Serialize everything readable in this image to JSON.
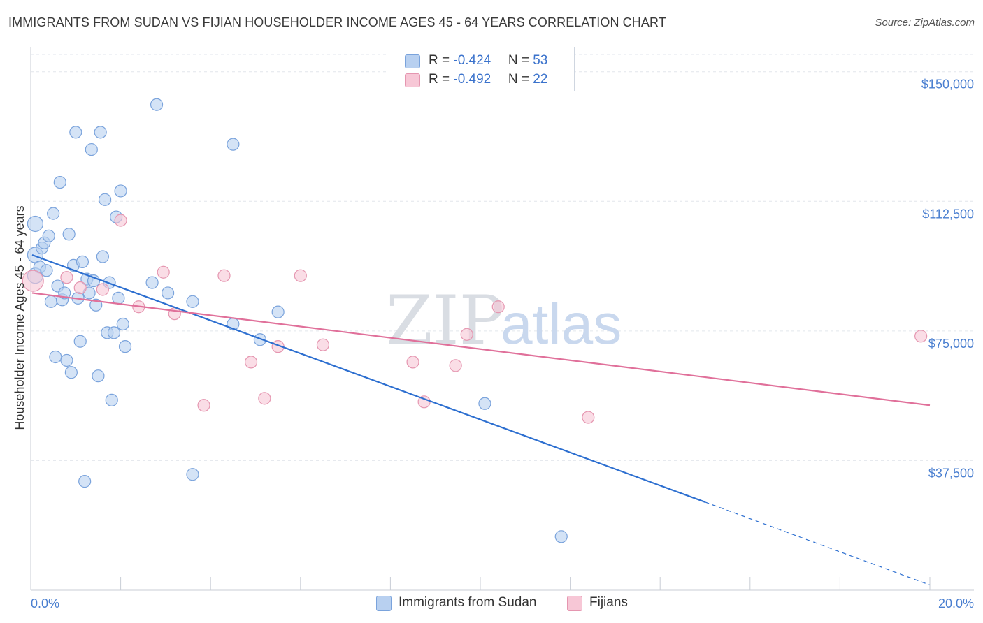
{
  "title": "IMMIGRANTS FROM SUDAN VS FIJIAN HOUSEHOLDER INCOME AGES 45 - 64 YEARS CORRELATION CHART",
  "source": "Source: ZipAtlas.com",
  "watermark": {
    "zip": "ZIP",
    "atlas": "atlas"
  },
  "legend": {
    "rows": [
      {
        "r_label": "R = ",
        "r_value": "-0.424",
        "n_label": "N = ",
        "n_value": "53"
      },
      {
        "r_label": "R = ",
        "r_value": "-0.492",
        "n_label": "N = ",
        "n_value": "22"
      }
    ]
  },
  "bottom_legend": {
    "series1": "Immigrants from Sudan",
    "series2": "Fijians"
  },
  "colors": {
    "sudan_fill": "#b8d0f0",
    "sudan_stroke": "#7aa3dc",
    "sudan_line": "#2d6fd0",
    "fijian_fill": "#f7c7d6",
    "fijian_stroke": "#e596b0",
    "fijian_line": "#e0709a",
    "grid": "#e2e6ec",
    "axis_text": "#4a7fd0"
  },
  "chart_data": {
    "type": "scatter",
    "title": "IMMIGRANTS FROM SUDAN VS FIJIAN HOUSEHOLDER INCOME AGES 45 - 64 YEARS CORRELATION CHART",
    "xlabel": "",
    "ylabel": "Householder Income Ages 45 - 64 years",
    "xlim": [
      0,
      20
    ],
    "ylim": [
      0,
      155000
    ],
    "x_tick_labels": [
      "0.0%",
      "20.0%"
    ],
    "y_ticks": [
      37500,
      75000,
      112500,
      150000
    ],
    "y_tick_labels": [
      "$37,500",
      "$75,000",
      "$112,500",
      "$150,000"
    ],
    "series": [
      {
        "name": "Immigrants from Sudan",
        "r": -0.424,
        "n": 53,
        "points": [
          [
            0.1,
            106000
          ],
          [
            0.1,
            97000
          ],
          [
            0.1,
            91000
          ],
          [
            0.2,
            93500
          ],
          [
            0.25,
            99000
          ],
          [
            0.3,
            100500
          ],
          [
            0.35,
            92500
          ],
          [
            0.4,
            102500
          ],
          [
            0.45,
            83500
          ],
          [
            0.5,
            109000
          ],
          [
            0.55,
            67500
          ],
          [
            0.6,
            88000
          ],
          [
            0.65,
            118000
          ],
          [
            0.7,
            84000
          ],
          [
            0.75,
            86000
          ],
          [
            0.8,
            66500
          ],
          [
            0.85,
            103000
          ],
          [
            0.9,
            63000
          ],
          [
            0.95,
            94000
          ],
          [
            1.0,
            132500
          ],
          [
            1.05,
            84500
          ],
          [
            1.1,
            72000
          ],
          [
            1.15,
            95000
          ],
          [
            1.2,
            31500
          ],
          [
            1.25,
            90000
          ],
          [
            1.3,
            86000
          ],
          [
            1.35,
            127500
          ],
          [
            1.4,
            89500
          ],
          [
            1.45,
            82500
          ],
          [
            1.5,
            62000
          ],
          [
            1.55,
            132500
          ],
          [
            1.6,
            96500
          ],
          [
            1.65,
            113000
          ],
          [
            1.7,
            74500
          ],
          [
            1.75,
            89000
          ],
          [
            1.8,
            55000
          ],
          [
            1.85,
            74500
          ],
          [
            1.9,
            108000
          ],
          [
            1.95,
            84500
          ],
          [
            2.0,
            115500
          ],
          [
            2.05,
            77000
          ],
          [
            2.1,
            70500
          ],
          [
            2.7,
            89000
          ],
          [
            2.8,
            140500
          ],
          [
            3.05,
            86000
          ],
          [
            3.6,
            83500
          ],
          [
            3.6,
            33500
          ],
          [
            4.5,
            129000
          ],
          [
            4.5,
            77000
          ],
          [
            5.1,
            72500
          ],
          [
            5.5,
            80500
          ],
          [
            10.1,
            54000
          ],
          [
            11.8,
            15500
          ]
        ],
        "trend": {
          "x0": 0.0,
          "y0": 97000,
          "x1": 15.0,
          "y1": 25500,
          "dashed_to_x": 20.0,
          "dashed_to_y": 1500
        }
      },
      {
        "name": "Fijians",
        "r": -0.492,
        "n": 22,
        "points": [
          [
            0.05,
            89500
          ],
          [
            0.8,
            90500
          ],
          [
            1.1,
            87500
          ],
          [
            1.6,
            87000
          ],
          [
            2.0,
            107000
          ],
          [
            2.4,
            82000
          ],
          [
            2.95,
            92000
          ],
          [
            3.2,
            80000
          ],
          [
            3.85,
            53500
          ],
          [
            4.3,
            91000
          ],
          [
            4.9,
            66000
          ],
          [
            5.2,
            55500
          ],
          [
            5.5,
            70500
          ],
          [
            6.0,
            91000
          ],
          [
            6.5,
            71000
          ],
          [
            8.5,
            66000
          ],
          [
            8.75,
            54500
          ],
          [
            9.45,
            65000
          ],
          [
            9.7,
            74000
          ],
          [
            10.4,
            82000
          ],
          [
            12.4,
            50000
          ],
          [
            19.8,
            73500
          ]
        ],
        "trend": {
          "x0": 0.0,
          "y0": 86000,
          "x1": 20.0,
          "y1": 53500
        }
      }
    ]
  }
}
